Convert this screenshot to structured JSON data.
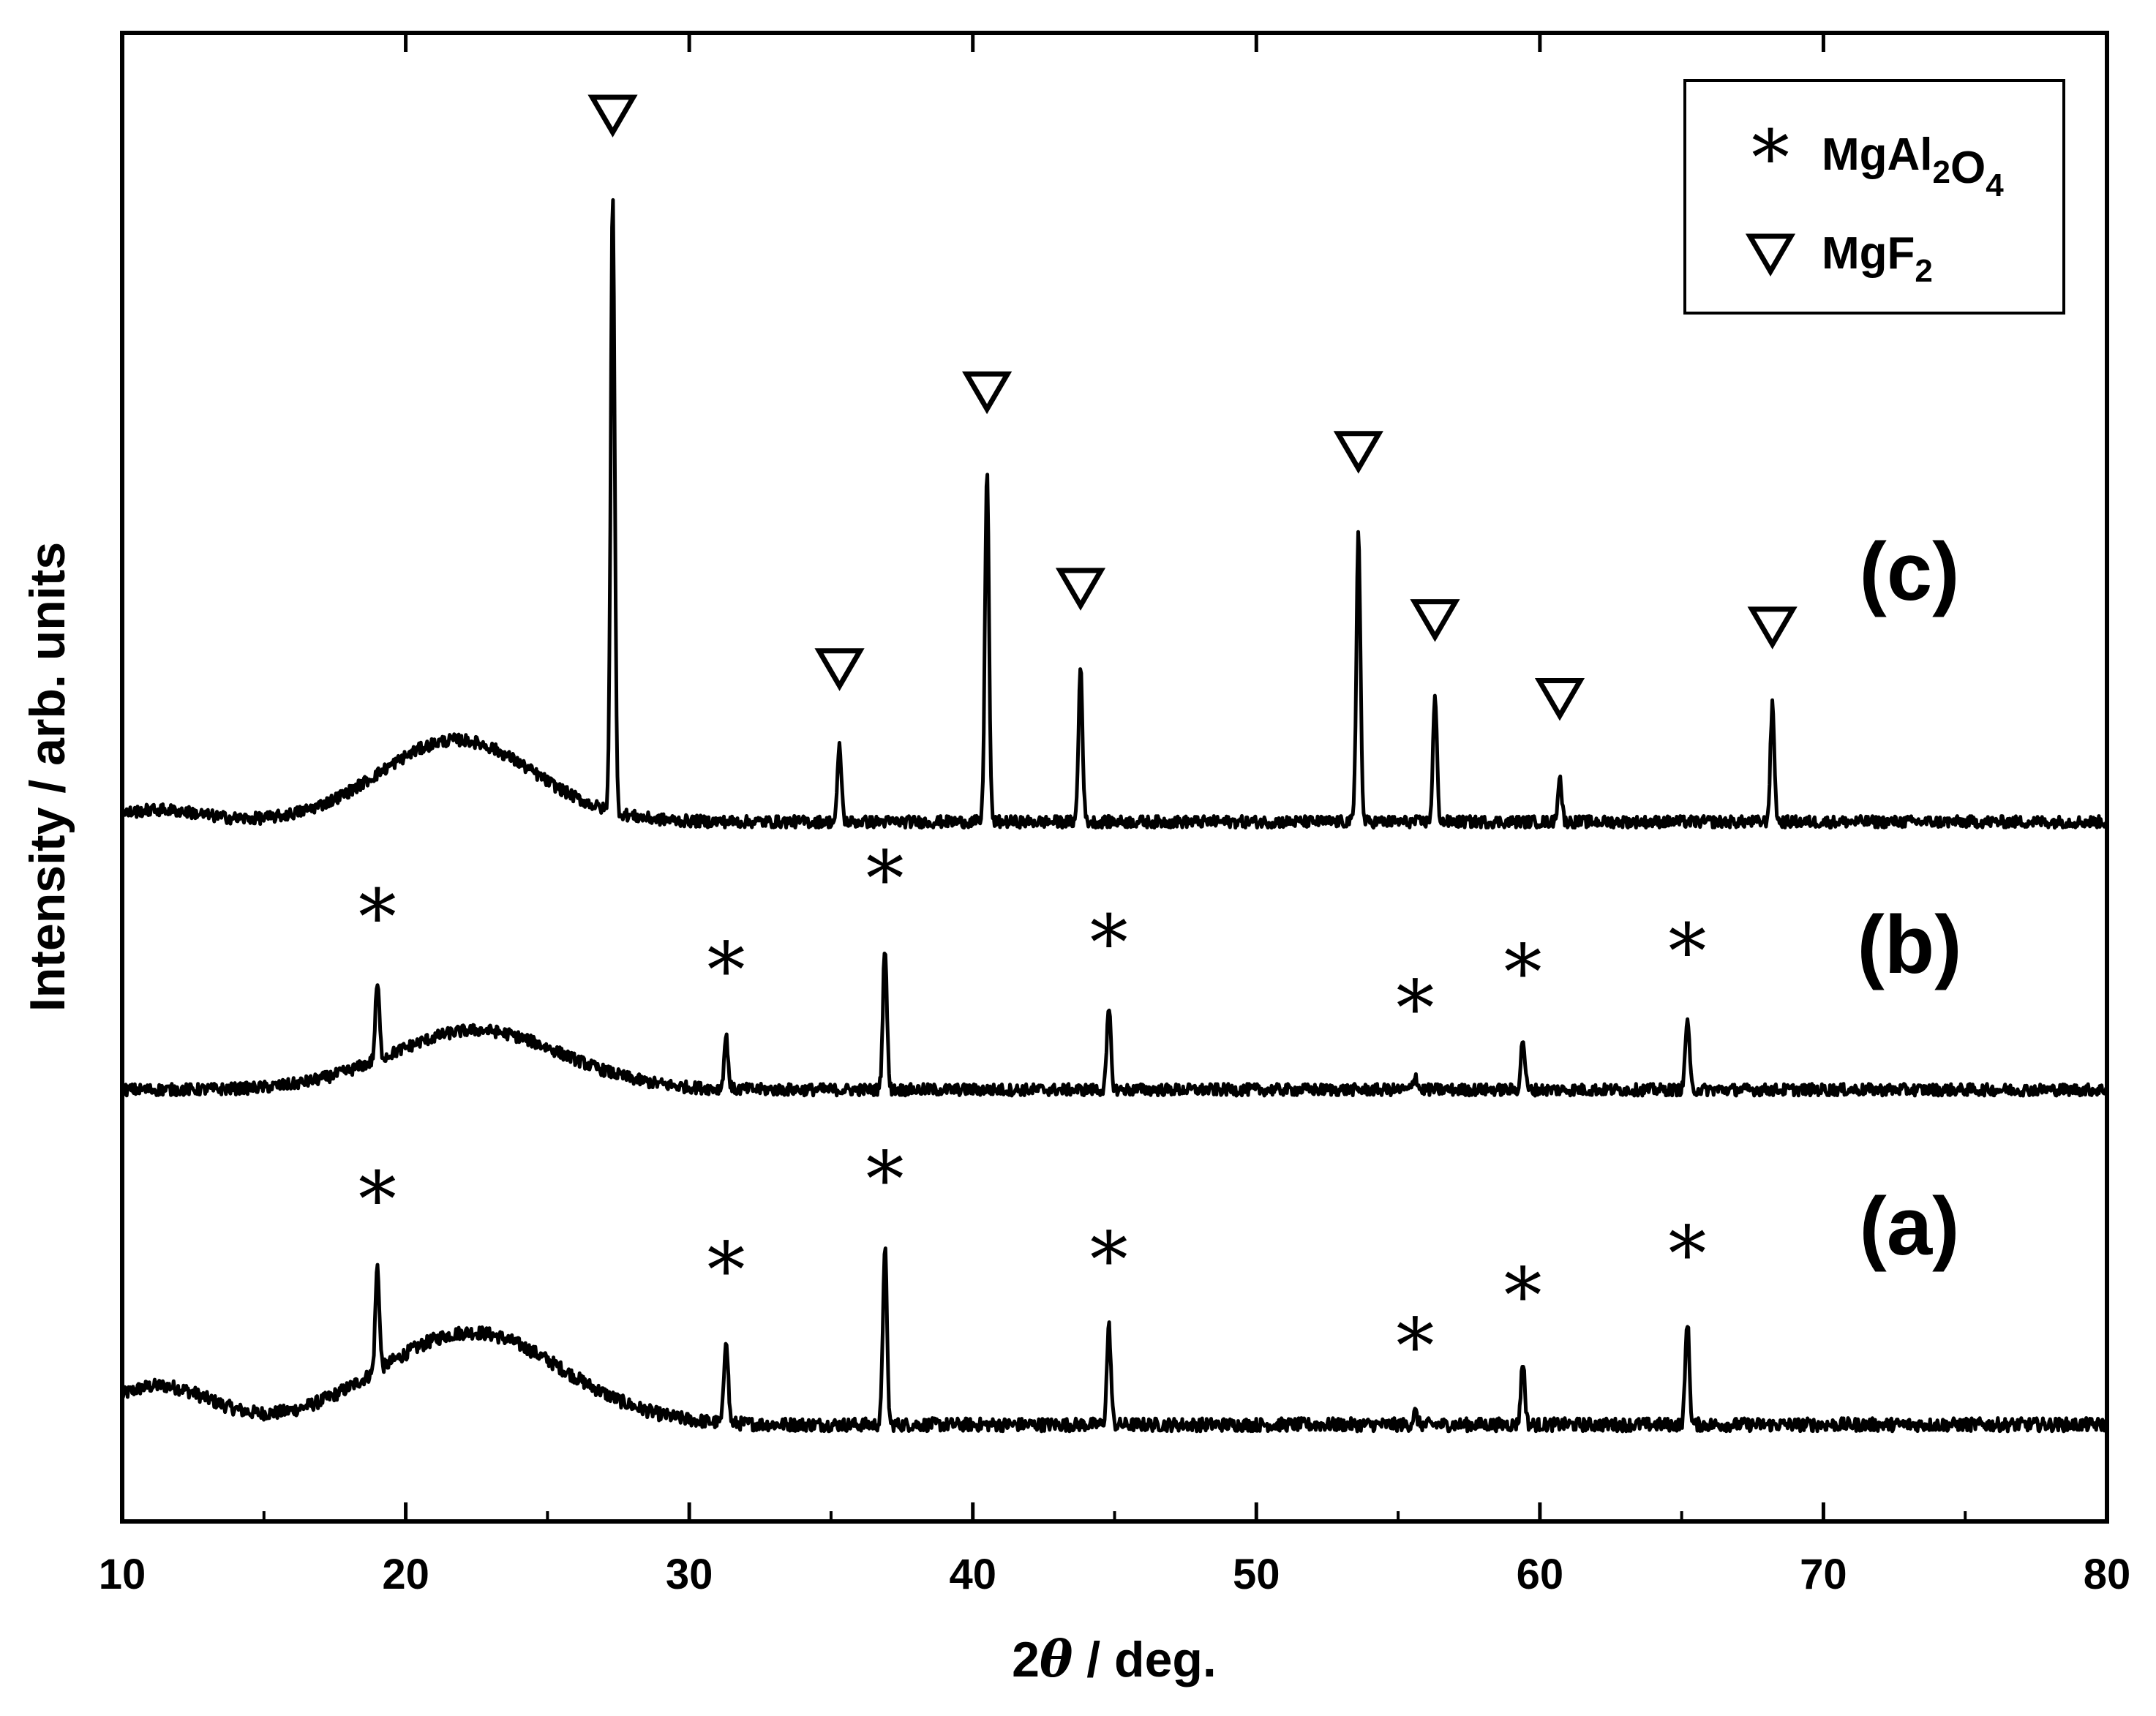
{
  "chart_data": {
    "type": "line",
    "xlabel": "2θ / deg.",
    "xlabel_prefix": "2",
    "xlabel_theta": "θ",
    "xlabel_suffix": " / deg.",
    "ylabel": "Intensity / arb. units",
    "xlim": [
      10,
      80
    ],
    "ylim": [
      0,
      100
    ],
    "xticks": [
      10,
      20,
      30,
      40,
      50,
      60,
      70,
      80
    ],
    "xtick_labels": [
      "10",
      "20",
      "30",
      "40",
      "50",
      "60",
      "70",
      "80"
    ],
    "yticks_shown": false,
    "legend": {
      "position": "top-right",
      "entries": [
        {
          "marker": "asterisk",
          "label": "MgAl2O4",
          "base": "MgAl",
          "sub1": "2",
          "mid": "O",
          "sub2": "4"
        },
        {
          "marker": "down-triangle",
          "label": "MgF2",
          "base": "MgF",
          "sub1": "2",
          "mid": "",
          "sub2": ""
        }
      ]
    },
    "series": [
      {
        "name": "(a)",
        "baseline": 6.5,
        "noise": 0.45,
        "humps": [
          {
            "center": 11.3,
            "width": 1.8,
            "height": 2.6
          },
          {
            "center": 22.3,
            "width": 3.2,
            "height": 6.2
          }
        ],
        "peaks": [
          {
            "x": 19.0,
            "height": 7.0,
            "marker": "asterisk"
          },
          {
            "x": 31.3,
            "height": 5.8,
            "marker": "asterisk"
          },
          {
            "x": 36.9,
            "height": 12.0,
            "marker": "asterisk"
          },
          {
            "x": 44.8,
            "height": 6.6,
            "marker": "asterisk"
          },
          {
            "x": 55.6,
            "height": 0.8,
            "marker": "asterisk"
          },
          {
            "x": 59.4,
            "height": 4.2,
            "marker": "asterisk"
          },
          {
            "x": 65.2,
            "height": 7.0,
            "marker": "asterisk"
          }
        ]
      },
      {
        "name": "(b)",
        "baseline": 29.0,
        "noise": 0.4,
        "humps": [
          {
            "center": 22.5,
            "width": 3.0,
            "height": 4.0
          }
        ],
        "peaks": [
          {
            "x": 19.0,
            "height": 5.1,
            "marker": "asterisk"
          },
          {
            "x": 31.3,
            "height": 3.5,
            "marker": "asterisk"
          },
          {
            "x": 36.9,
            "height": 9.7,
            "marker": "asterisk"
          },
          {
            "x": 44.8,
            "height": 5.4,
            "marker": "asterisk"
          },
          {
            "x": 55.6,
            "height": 1.0,
            "marker": "asterisk"
          },
          {
            "x": 59.4,
            "height": 3.4,
            "marker": "asterisk"
          },
          {
            "x": 65.2,
            "height": 4.8,
            "marker": "asterisk"
          }
        ]
      },
      {
        "name": "(c)",
        "baseline": 47.0,
        "noise": 0.4,
        "humps": [
          {
            "center": 11.3,
            "width": 1.5,
            "height": 0.8
          },
          {
            "center": 21.8,
            "width": 2.7,
            "height": 5.5
          }
        ],
        "peaks": [
          {
            "x": 27.3,
            "height": 41.5,
            "marker": "down-triangle"
          },
          {
            "x": 35.3,
            "height": 5.0,
            "marker": "down-triangle"
          },
          {
            "x": 40.5,
            "height": 23.6,
            "marker": "down-triangle"
          },
          {
            "x": 43.8,
            "height": 10.4,
            "marker": "down-triangle"
          },
          {
            "x": 53.6,
            "height": 19.6,
            "marker": "down-triangle"
          },
          {
            "x": 56.3,
            "height": 8.3,
            "marker": "down-triangle"
          },
          {
            "x": 60.7,
            "height": 3.0,
            "marker": "down-triangle"
          },
          {
            "x": 68.2,
            "height": 7.8,
            "marker": "down-triangle"
          }
        ]
      }
    ]
  }
}
